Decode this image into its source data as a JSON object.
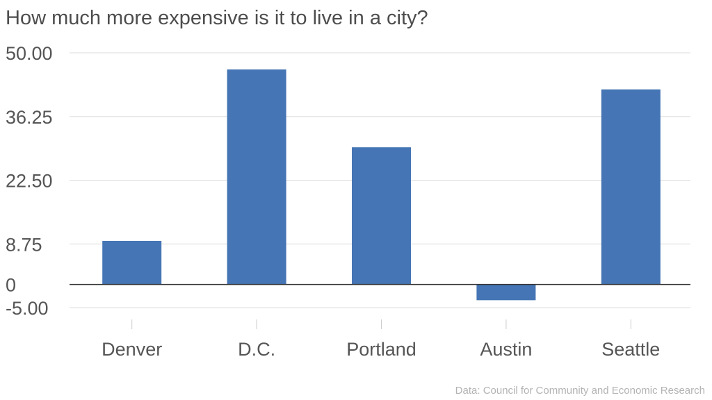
{
  "chart_data": {
    "type": "bar",
    "title": "How much more expensive is it to live in a city?",
    "source": "Data: Council for Community and Economic Research",
    "categories": [
      "Denver",
      "D.C.",
      "Portland",
      "Austin",
      "Seattle"
    ],
    "values": [
      9.4,
      46.4,
      29.6,
      -3.4,
      42.1
    ],
    "ylim": [
      -5,
      50
    ],
    "yticks": [
      -5,
      0,
      8.75,
      22.5,
      36.25,
      50
    ],
    "ytick_labels": [
      "-5.00",
      "0",
      "8.75",
      "22.50",
      "36.25",
      "50.00"
    ],
    "bar_color": "#4575b4",
    "grid": true,
    "xlabel": "",
    "ylabel": ""
  }
}
